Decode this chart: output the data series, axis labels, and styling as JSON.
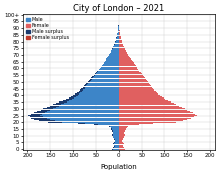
{
  "title": "City of London – 2021",
  "xlabel": "Population",
  "ages_count": 101,
  "male": [
    14,
    12,
    10,
    11,
    12,
    10,
    9,
    10,
    11,
    13,
    14,
    14,
    13,
    14,
    14,
    16,
    18,
    22,
    55,
    90,
    155,
    175,
    185,
    192,
    195,
    198,
    192,
    185,
    178,
    170,
    165,
    158,
    150,
    143,
    137,
    130,
    123,
    115,
    110,
    105,
    100,
    96,
    92,
    88,
    85,
    82,
    79,
    76,
    74,
    72,
    68,
    65,
    62,
    60,
    58,
    55,
    52,
    50,
    47,
    44,
    42,
    39,
    37,
    35,
    33,
    31,
    29,
    27,
    25,
    23,
    21,
    19,
    17,
    16,
    15,
    14,
    12,
    11,
    10,
    9,
    8,
    7,
    6,
    5,
    4,
    4,
    3,
    2,
    2,
    1,
    1,
    1,
    1,
    0,
    0,
    0,
    0,
    0,
    0,
    0,
    0
  ],
  "female": [
    13,
    11,
    9,
    10,
    11,
    9,
    8,
    9,
    10,
    12,
    13,
    13,
    12,
    13,
    13,
    15,
    17,
    20,
    45,
    75,
    125,
    140,
    150,
    158,
    165,
    172,
    168,
    162,
    157,
    150,
    145,
    138,
    132,
    126,
    120,
    114,
    108,
    102,
    98,
    94,
    90,
    87,
    84,
    81,
    78,
    75,
    73,
    71,
    69,
    67,
    64,
    61,
    59,
    57,
    55,
    52,
    50,
    48,
    45,
    43,
    41,
    39,
    37,
    35,
    33,
    31,
    29,
    27,
    25,
    23,
    21,
    19,
    17,
    16,
    14,
    13,
    12,
    10,
    9,
    8,
    7,
    6,
    5,
    4,
    4,
    3,
    3,
    2,
    2,
    1,
    1,
    1,
    0,
    0,
    0,
    0,
    0,
    0,
    0,
    0,
    0
  ],
  "color_male": "#3d85c8",
  "color_female": "#e06060",
  "color_male_surplus": "#1a3a6e",
  "color_female_surplus": "#c0392b",
  "xlim": 210,
  "xtick_vals": [
    -200,
    -150,
    -100,
    -50,
    0,
    50,
    100,
    150,
    200
  ],
  "xtick_labels": [
    "200",
    "150",
    "100",
    "50",
    "0",
    "50",
    "100",
    "150",
    "200"
  ],
  "ytick_step": 5,
  "bar_height": 0.85,
  "title_fontsize": 6,
  "tick_fontsize": 4,
  "xlabel_fontsize": 5,
  "legend_fontsize": 3.5
}
